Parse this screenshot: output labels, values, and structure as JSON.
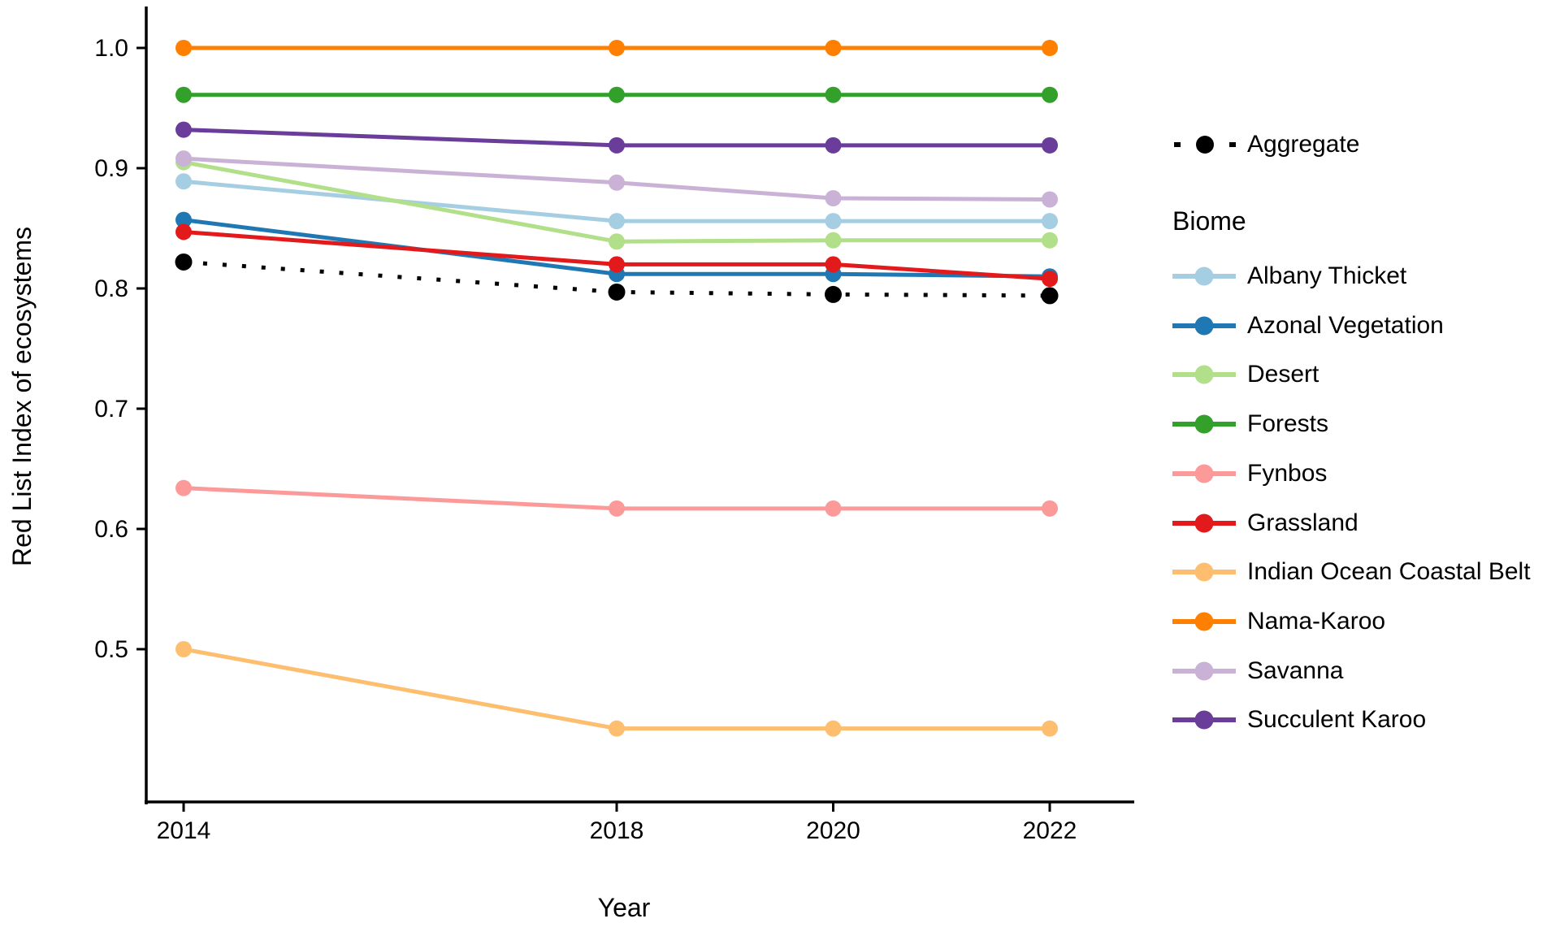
{
  "background": "#FFFFFF",
  "text_color": "#000000",
  "chart_data": {
    "type": "line",
    "x": [
      2014,
      2018,
      2020,
      2022
    ],
    "x_tick_labels": [
      "2014",
      "2018",
      "2020",
      "2022"
    ],
    "yticks": [
      1.0,
      0.9,
      0.8,
      0.7,
      0.6,
      0.5
    ],
    "y_tick_labels": [
      "1.0",
      "0.9",
      "0.8",
      "0.7",
      "0.6",
      "0.5"
    ],
    "ylim": [
      0.37,
      1.03
    ],
    "xlabel": "Year",
    "ylabel": "Red List Index of ecosystems",
    "grid": "off",
    "legend_position": "right",
    "legend_title": "Biome",
    "aggregate": {
      "name": "Aggregate",
      "color": "#000000",
      "linestyle": "dotted",
      "marker": "circle",
      "values": [
        0.822,
        0.797,
        0.795,
        0.794
      ]
    },
    "series": [
      {
        "name": "Albany Thicket",
        "color": "#A6CEE3",
        "values": [
          0.889,
          0.856,
          0.856,
          0.856
        ]
      },
      {
        "name": "Azonal Vegetation",
        "color": "#1F78B4",
        "values": [
          0.857,
          0.812,
          0.812,
          0.81
        ]
      },
      {
        "name": "Desert",
        "color": "#B2DF8A",
        "values": [
          0.905,
          0.839,
          0.84,
          0.84
        ]
      },
      {
        "name": "Forests",
        "color": "#33A02C",
        "values": [
          0.961,
          0.961,
          0.961,
          0.961
        ]
      },
      {
        "name": "Fynbos",
        "color": "#FB9A99",
        "values": [
          0.634,
          0.617,
          0.617,
          0.617
        ]
      },
      {
        "name": "Grassland",
        "color": "#E31A1C",
        "values": [
          0.847,
          0.82,
          0.82,
          0.808
        ]
      },
      {
        "name": "Indian Ocean Coastal Belt",
        "color": "#FDBF6F",
        "values": [
          0.5,
          0.434,
          0.434,
          0.434
        ]
      },
      {
        "name": "Nama-Karoo",
        "color": "#FF7F00",
        "values": [
          1.0,
          1.0,
          1.0,
          1.0
        ]
      },
      {
        "name": "Savanna",
        "color": "#CAB2D6",
        "values": [
          0.908,
          0.888,
          0.875,
          0.874
        ]
      },
      {
        "name": "Succulent Karoo",
        "color": "#6A3D9A",
        "values": [
          0.932,
          0.919,
          0.919,
          0.919
        ]
      }
    ]
  }
}
